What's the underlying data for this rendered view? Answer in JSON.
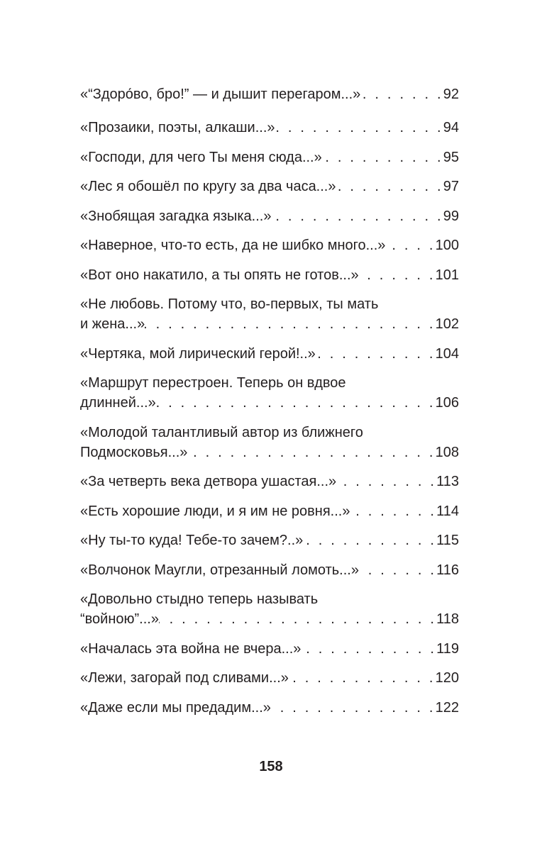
{
  "toc": {
    "entries": [
      {
        "lines": [
          "«“Здоро́во, бро!” — и дышит перегаром...»"
        ],
        "page": "92"
      },
      {
        "lines": [
          "«Прозаики, поэты, алкаши...»"
        ],
        "page": "94"
      },
      {
        "lines": [
          "«Господи, для чего Ты меня сюда...»"
        ],
        "page": "95"
      },
      {
        "lines": [
          "«Лес я обошёл по кругу за два часа...»"
        ],
        "page": "97"
      },
      {
        "lines": [
          "«Знобящая загадка языка...»"
        ],
        "page": "99"
      },
      {
        "lines": [
          "«Наверное, что-то есть, да не шибко много...»"
        ],
        "page": "100"
      },
      {
        "lines": [
          "«Вот оно накатило, а ты опять не готов...»"
        ],
        "page": "101"
      },
      {
        "lines": [
          "«Не любовь. Потому что, во-первых, ты мать",
          "и жена...»"
        ],
        "page": "102"
      },
      {
        "lines": [
          "«Чертяка, мой лирический герой!..»"
        ],
        "page": "104"
      },
      {
        "lines": [
          "«Маршрут перестроен. Теперь он вдвое",
          "длинней...»"
        ],
        "page": "106"
      },
      {
        "lines": [
          "«Молодой талантливый автор из ближнего",
          "Подмосковья...»"
        ],
        "page": "108"
      },
      {
        "lines": [
          "«За четверть века детвора ушастая...»"
        ],
        "page": "113"
      },
      {
        "lines": [
          "«Есть хорошие люди, и я им не ровня...»"
        ],
        "page": "114"
      },
      {
        "lines": [
          "«Ну ты-то куда! Тебе-то зачем?..»"
        ],
        "page": "115"
      },
      {
        "lines": [
          "«Волчонок Маугли, отрезанный ломоть...»"
        ],
        "page": "116"
      },
      {
        "lines": [
          "«Довольно стыдно теперь называть",
          "“войною”...»"
        ],
        "page": "118"
      },
      {
        "lines": [
          "«Началась эта война не вчера...»"
        ],
        "page": "119"
      },
      {
        "lines": [
          "«Лежи, загорай под сливами...»"
        ],
        "page": "120"
      },
      {
        "lines": [
          "«Даже если мы предадим...»"
        ],
        "page": "122"
      }
    ]
  },
  "folio": "158"
}
